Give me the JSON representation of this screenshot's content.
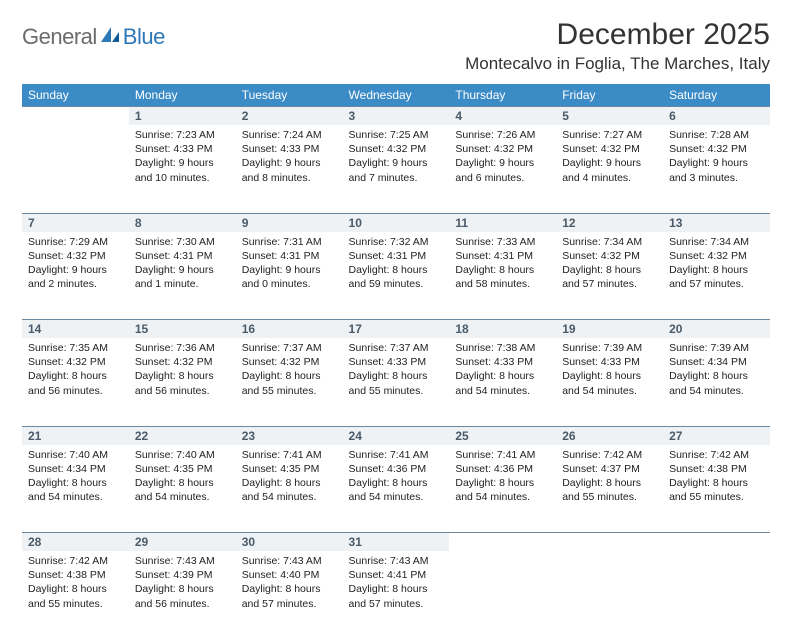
{
  "logo": {
    "text1": "General",
    "text2": "Blue"
  },
  "title": "December 2025",
  "location": "Montecalvo in Foglia, The Marches, Italy",
  "colors": {
    "header_bg": "#3b8bc7",
    "header_text": "#ffffff",
    "daynum_bg": "#eef2f5",
    "daynum_border": "#6b87a0",
    "daynum_text": "#4a5a68",
    "body_text": "#222222",
    "logo_gray": "#6b6b6b",
    "logo_blue": "#2f78b7"
  },
  "typography": {
    "title_fontsize": 30,
    "location_fontsize": 17,
    "header_fontsize": 12,
    "daynum_fontsize": 12,
    "cell_fontsize": 10.5
  },
  "weekdays": [
    "Sunday",
    "Monday",
    "Tuesday",
    "Wednesday",
    "Thursday",
    "Friday",
    "Saturday"
  ],
  "weeks": [
    [
      null,
      {
        "n": "1",
        "sr": "7:23 AM",
        "ss": "4:33 PM",
        "dl": "9 hours and 10 minutes."
      },
      {
        "n": "2",
        "sr": "7:24 AM",
        "ss": "4:33 PM",
        "dl": "9 hours and 8 minutes."
      },
      {
        "n": "3",
        "sr": "7:25 AM",
        "ss": "4:32 PM",
        "dl": "9 hours and 7 minutes."
      },
      {
        "n": "4",
        "sr": "7:26 AM",
        "ss": "4:32 PM",
        "dl": "9 hours and 6 minutes."
      },
      {
        "n": "5",
        "sr": "7:27 AM",
        "ss": "4:32 PM",
        "dl": "9 hours and 4 minutes."
      },
      {
        "n": "6",
        "sr": "7:28 AM",
        "ss": "4:32 PM",
        "dl": "9 hours and 3 minutes."
      }
    ],
    [
      {
        "n": "7",
        "sr": "7:29 AM",
        "ss": "4:32 PM",
        "dl": "9 hours and 2 minutes."
      },
      {
        "n": "8",
        "sr": "7:30 AM",
        "ss": "4:31 PM",
        "dl": "9 hours and 1 minute."
      },
      {
        "n": "9",
        "sr": "7:31 AM",
        "ss": "4:31 PM",
        "dl": "9 hours and 0 minutes."
      },
      {
        "n": "10",
        "sr": "7:32 AM",
        "ss": "4:31 PM",
        "dl": "8 hours and 59 minutes."
      },
      {
        "n": "11",
        "sr": "7:33 AM",
        "ss": "4:31 PM",
        "dl": "8 hours and 58 minutes."
      },
      {
        "n": "12",
        "sr": "7:34 AM",
        "ss": "4:32 PM",
        "dl": "8 hours and 57 minutes."
      },
      {
        "n": "13",
        "sr": "7:34 AM",
        "ss": "4:32 PM",
        "dl": "8 hours and 57 minutes."
      }
    ],
    [
      {
        "n": "14",
        "sr": "7:35 AM",
        "ss": "4:32 PM",
        "dl": "8 hours and 56 minutes."
      },
      {
        "n": "15",
        "sr": "7:36 AM",
        "ss": "4:32 PM",
        "dl": "8 hours and 56 minutes."
      },
      {
        "n": "16",
        "sr": "7:37 AM",
        "ss": "4:32 PM",
        "dl": "8 hours and 55 minutes."
      },
      {
        "n": "17",
        "sr": "7:37 AM",
        "ss": "4:33 PM",
        "dl": "8 hours and 55 minutes."
      },
      {
        "n": "18",
        "sr": "7:38 AM",
        "ss": "4:33 PM",
        "dl": "8 hours and 54 minutes."
      },
      {
        "n": "19",
        "sr": "7:39 AM",
        "ss": "4:33 PM",
        "dl": "8 hours and 54 minutes."
      },
      {
        "n": "20",
        "sr": "7:39 AM",
        "ss": "4:34 PM",
        "dl": "8 hours and 54 minutes."
      }
    ],
    [
      {
        "n": "21",
        "sr": "7:40 AM",
        "ss": "4:34 PM",
        "dl": "8 hours and 54 minutes."
      },
      {
        "n": "22",
        "sr": "7:40 AM",
        "ss": "4:35 PM",
        "dl": "8 hours and 54 minutes."
      },
      {
        "n": "23",
        "sr": "7:41 AM",
        "ss": "4:35 PM",
        "dl": "8 hours and 54 minutes."
      },
      {
        "n": "24",
        "sr": "7:41 AM",
        "ss": "4:36 PM",
        "dl": "8 hours and 54 minutes."
      },
      {
        "n": "25",
        "sr": "7:41 AM",
        "ss": "4:36 PM",
        "dl": "8 hours and 54 minutes."
      },
      {
        "n": "26",
        "sr": "7:42 AM",
        "ss": "4:37 PM",
        "dl": "8 hours and 55 minutes."
      },
      {
        "n": "27",
        "sr": "7:42 AM",
        "ss": "4:38 PM",
        "dl": "8 hours and 55 minutes."
      }
    ],
    [
      {
        "n": "28",
        "sr": "7:42 AM",
        "ss": "4:38 PM",
        "dl": "8 hours and 55 minutes."
      },
      {
        "n": "29",
        "sr": "7:43 AM",
        "ss": "4:39 PM",
        "dl": "8 hours and 56 minutes."
      },
      {
        "n": "30",
        "sr": "7:43 AM",
        "ss": "4:40 PM",
        "dl": "8 hours and 57 minutes."
      },
      {
        "n": "31",
        "sr": "7:43 AM",
        "ss": "4:41 PM",
        "dl": "8 hours and 57 minutes."
      },
      null,
      null,
      null
    ]
  ],
  "labels": {
    "sunrise": "Sunrise:",
    "sunset": "Sunset:",
    "daylight": "Daylight:"
  }
}
